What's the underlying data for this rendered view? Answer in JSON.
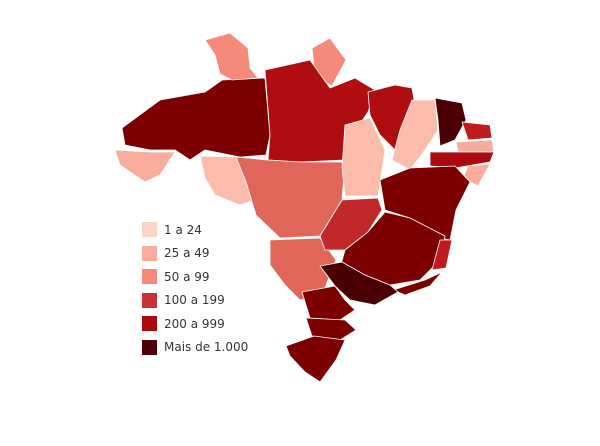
{
  "legend": {
    "items": [
      {
        "label": "1 a 24",
        "color": "#fcd3c3"
      },
      {
        "label": "25 a 49",
        "color": "#f9ab9c"
      },
      {
        "label": "50 a 99",
        "color": "#f58a7b"
      },
      {
        "label": "100 a 199",
        "color": "#c93232"
      },
      {
        "label": "200 a 999",
        "color": "#aa0a0d"
      },
      {
        "label": "Mais de 1.000",
        "color": "#4a0005"
      }
    ]
  },
  "regions": [
    {
      "name": "AM",
      "color": "#7c0000"
    },
    {
      "name": "AC",
      "color": "#f9ab9c"
    },
    {
      "name": "RO",
      "color": "#fbbcac"
    },
    {
      "name": "RR",
      "color": "#f58a7b"
    },
    {
      "name": "AP",
      "color": "#f58a7b"
    },
    {
      "name": "PA",
      "color": "#b00d10"
    },
    {
      "name": "MT",
      "color": "#e0665a"
    },
    {
      "name": "MS",
      "color": "#e0665a"
    },
    {
      "name": "TO",
      "color": "#fbbcac"
    },
    {
      "name": "MA",
      "color": "#b00d10"
    },
    {
      "name": "PI",
      "color": "#fbbcac"
    },
    {
      "name": "CE",
      "color": "#4a0005"
    },
    {
      "name": "RN",
      "color": "#c01a1e"
    },
    {
      "name": "PB",
      "color": "#f9ab9c"
    },
    {
      "name": "PE",
      "color": "#aa0a0d"
    },
    {
      "name": "AL-SE",
      "color": "#f9ab9c"
    },
    {
      "name": "BA",
      "color": "#7c0000"
    },
    {
      "name": "GO",
      "color": "#c0282a"
    },
    {
      "name": "MG",
      "color": "#7c0000"
    },
    {
      "name": "ES",
      "color": "#c01a1e"
    },
    {
      "name": "RJ",
      "color": "#7c0000"
    },
    {
      "name": "SP",
      "color": "#4a0005"
    },
    {
      "name": "PR",
      "color": "#7c0000"
    },
    {
      "name": "SC",
      "color": "#7c0000"
    },
    {
      "name": "RS",
      "color": "#7c0000"
    }
  ]
}
